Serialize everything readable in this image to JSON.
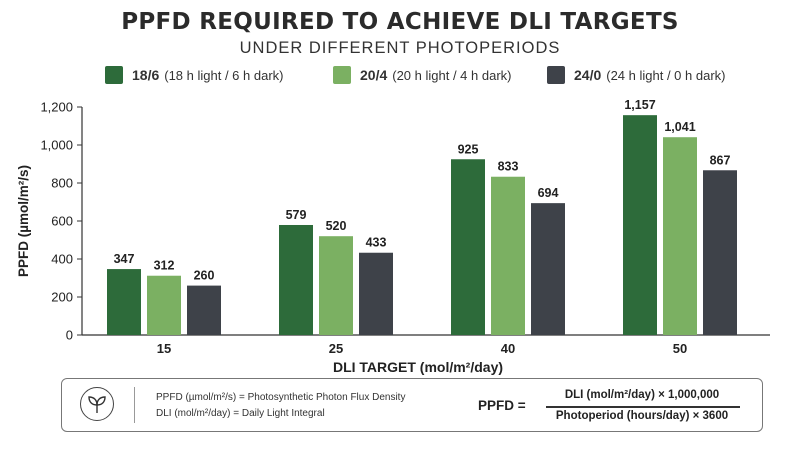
{
  "title": "PPFD REQUIRED TO ACHIEVE DLI TARGETS",
  "subtitle": "UNDER DIFFERENT PHOTOPERIODS",
  "legend": [
    {
      "name": "18/6",
      "desc": "(18 h light / 6 h dark)",
      "color": "#2d6b3a"
    },
    {
      "name": "20/4",
      "desc": "(20 h light / 4 h dark)",
      "color": "#7bb062"
    },
    {
      "name": "24/0",
      "desc": "(24 h light / 0 h dark)",
      "color": "#3e4249"
    }
  ],
  "chart_data": {
    "type": "bar",
    "categories": [
      "15",
      "25",
      "40",
      "50"
    ],
    "series": [
      {
        "name": "18/6",
        "values": [
          347,
          579,
          925,
          1157
        ]
      },
      {
        "name": "20/4",
        "values": [
          312,
          520,
          833,
          1041
        ]
      },
      {
        "name": "24/0",
        "values": [
          260,
          433,
          694,
          867
        ]
      }
    ],
    "value_labels": [
      [
        "347",
        "579",
        "925",
        "1,157"
      ],
      [
        "312",
        "520",
        "833",
        "1,041"
      ],
      [
        "260",
        "433",
        "694",
        "867"
      ]
    ],
    "colors": [
      "#2d6b3a",
      "#7bb062",
      "#3e4249"
    ],
    "xlabel": "DLI TARGET (mol/m²/day)",
    "ylabel": "PPFD (µmol/m²/s)",
    "ylim": [
      0,
      1200
    ],
    "yticks": [
      0,
      200,
      400,
      600,
      800,
      1000,
      1200
    ],
    "ytick_labels": [
      "0",
      "200",
      "400",
      "600",
      "800",
      "1,000",
      "1,200"
    ],
    "grid": false,
    "legend_position": "top"
  },
  "info": {
    "icon": "leaf-icon",
    "ppfd_def": "PPFD (µmol/m²/s) = Photosynthetic Photon Flux Density",
    "dli_def": "DLI (mol/m²/day) = Daily Light Integral",
    "formula_lhs": "PPFD =",
    "formula_num": "DLI (mol/m²/day) × 1,000,000",
    "formula_den": "Photoperiod (hours/day) × 3600"
  }
}
